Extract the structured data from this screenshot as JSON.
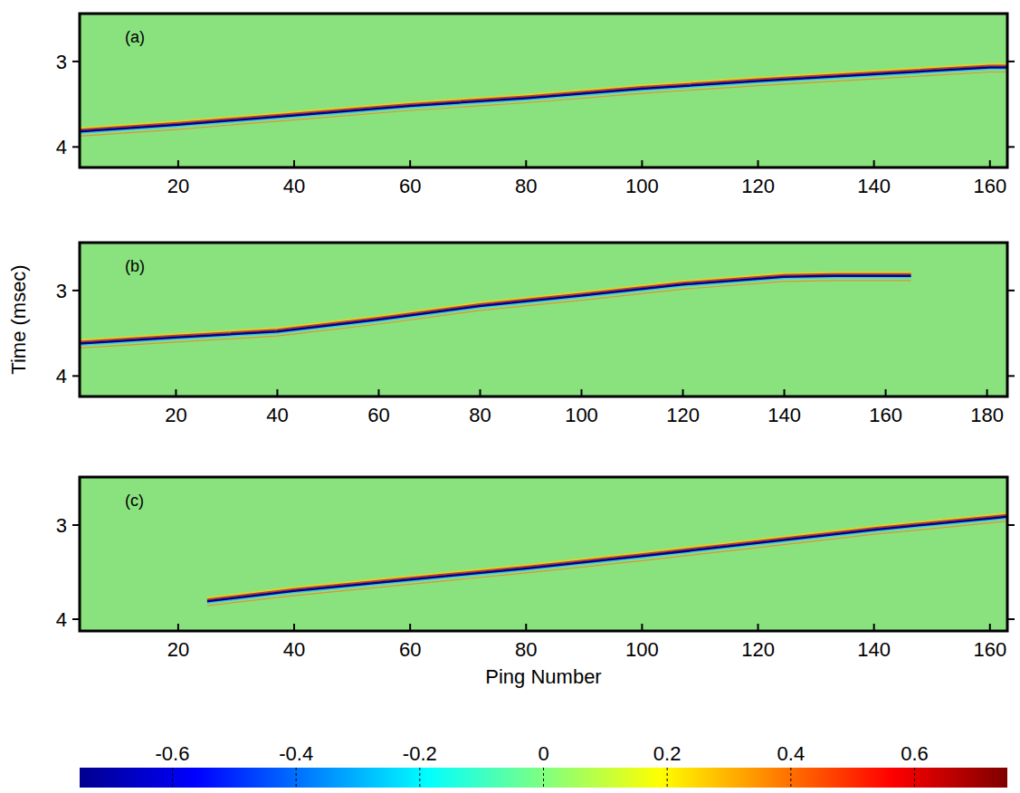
{
  "chart_data": [
    {
      "type": "line",
      "annotation": "(a)",
      "x": [
        3,
        20,
        40,
        60,
        80,
        100,
        120,
        140,
        160,
        163
      ],
      "series": [
        {
          "color": "#00008f",
          "values": [
            3.82,
            3.74,
            3.63,
            3.52,
            3.43,
            3.32,
            3.23,
            3.15,
            3.07,
            3.07
          ]
        }
      ],
      "xlim": [
        3,
        163
      ],
      "xticks": [
        20,
        40,
        60,
        80,
        100,
        120,
        140,
        160
      ],
      "ylim": [
        2.44,
        4.24
      ],
      "yticks": [
        3,
        4
      ]
    },
    {
      "type": "line",
      "annotation": "(b)",
      "y_label": "Time (msec)",
      "x": [
        1,
        20,
        40,
        60,
        80,
        100,
        120,
        140,
        150,
        165
      ],
      "series": [
        {
          "color": "#00008f",
          "values": [
            3.62,
            3.55,
            3.48,
            3.34,
            3.18,
            3.06,
            2.93,
            2.84,
            2.83,
            2.83
          ]
        }
      ],
      "xlim": [
        1,
        184
      ],
      "xticks": [
        20,
        40,
        60,
        80,
        100,
        120,
        140,
        160,
        180
      ],
      "ylim": [
        2.44,
        4.24
      ],
      "yticks": [
        3,
        4
      ]
    },
    {
      "type": "line",
      "annotation": "(c)",
      "x_label": "Ping Number",
      "x": [
        25,
        40,
        60,
        80,
        100,
        120,
        140,
        160,
        163
      ],
      "series": [
        {
          "color": "#00008f",
          "values": [
            3.81,
            3.7,
            3.58,
            3.46,
            3.33,
            3.19,
            3.05,
            2.93,
            2.91
          ]
        }
      ],
      "xlim": [
        3,
        163
      ],
      "xticks": [
        20,
        40,
        60,
        80,
        100,
        120,
        140,
        160
      ],
      "ylim": [
        2.49,
        4.125
      ],
      "yticks": [
        3,
        4
      ],
      "color_range": [
        -0.75,
        0.75
      ],
      "color_ticks": [
        -0.6,
        -0.4,
        -0.2,
        0,
        0.2,
        0.4,
        0.6
      ]
    }
  ]
}
